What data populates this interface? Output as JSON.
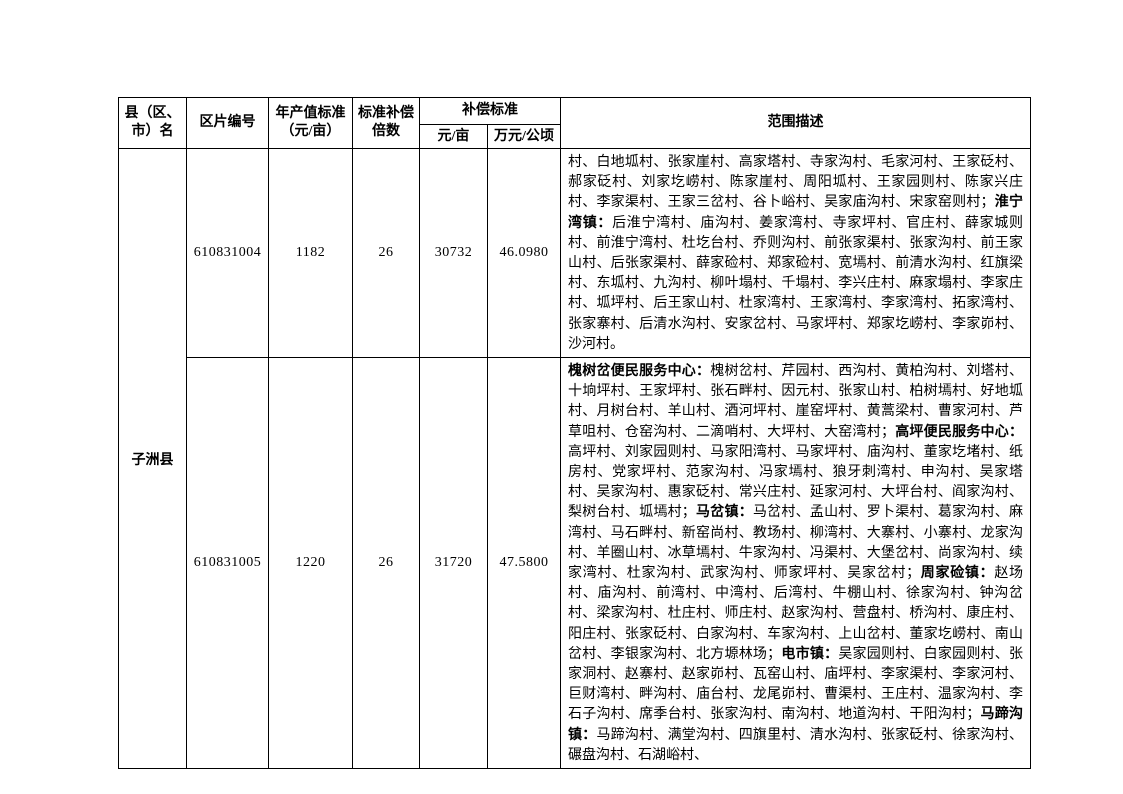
{
  "table": {
    "headers": {
      "county": "县（区、市）名",
      "zone_code": "区片编号",
      "annual_output": "年产值标准（元/亩）",
      "multiplier": "标准补偿倍数",
      "compensation": "补偿标准",
      "unit_yuan_mu": "元/亩",
      "unit_wanyuan_hectare": "万元/公顷",
      "scope": "范围描述"
    },
    "county": "子洲县",
    "rows": [
      {
        "zone_code": "610831004",
        "annual_output": "1182",
        "multiplier": "26",
        "yuan_per_mu": "30732",
        "wanyuan_per_hectare": "46.0980",
        "scope_segments": [
          {
            "b": false,
            "t": "村、白地坬村、张家崖村、高家塔村、寺家沟村、毛家河村、王家砭村、郝家砭村、刘家圪崂村、陈家崖村、周阳坬村、王家园则村、陈家兴庄村、李家渠村、王家三岔村、谷卜峪村、吴家庙沟村、宋家窑则村；"
          },
          {
            "b": true,
            "t": "淮宁湾镇："
          },
          {
            "b": false,
            "t": "后淮宁湾村、庙沟村、姜家湾村、寺家坪村、官庄村、薛家城则村、前淮宁湾村、杜圪台村、乔则沟村、前张家渠村、张家沟村、前王家山村、后张家渠村、薛家硷村、郑家硷村、宽墕村、前清水沟村、红旗梁村、东坬村、九沟村、柳叶塌村、千塌村、李兴庄村、麻家塌村、李家庄村、坬坪村、后王家山村、杜家湾村、王家湾村、李家湾村、拓家湾村、张家寨村、后清水沟村、安家岔村、马家坪村、郑家圪崂村、李家峁村、沙河村。"
          }
        ]
      },
      {
        "zone_code": "610831005",
        "annual_output": "1220",
        "multiplier": "26",
        "yuan_per_mu": "31720",
        "wanyuan_per_hectare": "47.5800",
        "scope_segments": [
          {
            "b": true,
            "t": "槐树岔便民服务中心："
          },
          {
            "b": false,
            "t": "槐树岔村、芹园村、西沟村、黄柏沟村、刘塔村、十垧坪村、王家坪村、张石畔村、因元村、张家山村、柏树墕村、好地坬村、月树台村、羊山村、酒河坪村、崖窑坪村、黄蒿梁村、曹家河村、芦草咀村、仓窑沟村、二滴哨村、大坪村、大窑湾村；"
          },
          {
            "b": true,
            "t": "高坪便民服务中心："
          },
          {
            "b": false,
            "t": "高坪村、刘家园则村、马家阳湾村、马家坪村、庙沟村、董家圪堵村、纸房村、党家坪村、范家沟村、冯家墕村、狼牙刺湾村、申沟村、吴家塔村、吴家沟村、惠家砭村、常兴庄村、延家河村、大坪台村、阎家沟村、梨树台村、坬墕村；"
          },
          {
            "b": true,
            "t": "马岔镇："
          },
          {
            "b": false,
            "t": "马岔村、孟山村、罗卜渠村、葛家沟村、麻湾村、马石畔村、新窑尚村、教场村、柳湾村、大寨村、小寨村、龙家沟村、羊圈山村、冰草墕村、牛家沟村、冯渠村、大堡岔村、尚家沟村、续家湾村、杜家沟村、武家沟村、师家坪村、吴家岔村；"
          },
          {
            "b": true,
            "t": "周家硷镇："
          },
          {
            "b": false,
            "t": "赵场村、庙沟村、前湾村、中湾村、后湾村、牛棚山村、徐家沟村、钟沟岔村、梁家沟村、杜庄村、师庄村、赵家沟村、营盘村、桥沟村、康庄村、阳庄村、张家砭村、白家沟村、车家沟村、上山岔村、董家圪崂村、南山岔村、李银家沟村、北方塬林场；"
          },
          {
            "b": true,
            "t": "电市镇："
          },
          {
            "b": false,
            "t": "吴家园则村、白家园则村、张家洞村、赵寨村、赵家峁村、瓦窑山村、庙坪村、李家渠村、李家河村、巨财湾村、畔沟村、庙台村、龙尾峁村、曹渠村、王庄村、温家沟村、李石子沟村、席季台村、张家沟村、南沟村、地道沟村、干阳沟村；"
          },
          {
            "b": true,
            "t": "马蹄沟镇："
          },
          {
            "b": false,
            "t": "马蹄沟村、满堂沟村、四旗里村、清水沟村、张家砭村、徐家沟村、碾盘沟村、石湖峪村、"
          }
        ]
      }
    ]
  }
}
